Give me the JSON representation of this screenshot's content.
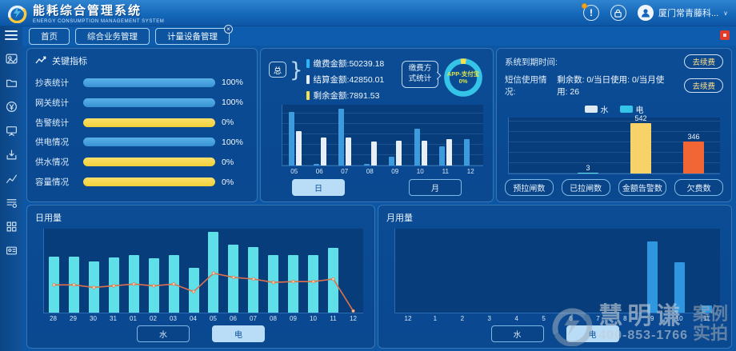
{
  "colors": {
    "indicator_blue": "#47a1de",
    "indicator_yellow": "#f5d94e",
    "bar_blue": "#3d9bdd",
    "bar_white": "#e8eef5",
    "bar_cyan": "#5fdfe8",
    "bar_month_blue": "#2f97e0",
    "bar_warn_yellow": "#f7d268",
    "bar_warn_orange": "#f26535",
    "line_orange": "#e0714a",
    "donut_ring": "#35c3e8",
    "donut_accent": "#f7e04e"
  },
  "header": {
    "title": "能耗综合管理系统",
    "subtitle": "ENERGY CONSUMPTION MANAGEMENT SYSTEM",
    "user": "厦门常青藤科...",
    "alert_glyph": "!"
  },
  "tabs": [
    {
      "label": "首页",
      "closable": false
    },
    {
      "label": "综合业务管理",
      "closable": false
    },
    {
      "label": "计量设备管理",
      "closable": true
    }
  ],
  "sidebar": {
    "items": [
      "monitor-card-icon",
      "folder-icon",
      "currency-icon",
      "presentation-icon",
      "download-tray-icon",
      "line-chart-icon",
      "list-gear-icon",
      "grid-icon",
      "id-card-icon"
    ]
  },
  "panels": {
    "indicators": {
      "title": "关键指标",
      "rows": [
        {
          "label": "抄表统计",
          "value": "100%",
          "color": "blue"
        },
        {
          "label": "网关统计",
          "value": "100%",
          "color": "blue"
        },
        {
          "label": "告警统计",
          "value": "0%",
          "color": "yellow"
        },
        {
          "label": "供电情况",
          "value": "100%",
          "color": "blue"
        },
        {
          "label": "供水情况",
          "value": "0%",
          "color": "yellow"
        },
        {
          "label": "容量情况",
          "value": "0%",
          "color": "yellow"
        }
      ]
    },
    "payment": {
      "badge": "总",
      "stats": [
        {
          "label": "缴费金额:50239.18",
          "color": "#29b6f6"
        },
        {
          "label": "结算金额:42850.01",
          "color": "#e8eef5"
        },
        {
          "label": "剩余金额:7891.53",
          "color": "#f7e04e"
        }
      ],
      "method_label": "缴费方式统计",
      "donut_center_line1": "APP-支付宝",
      "donut_center_line2": "0%",
      "day_btn": "日",
      "month_btn": "月"
    },
    "system": {
      "expire_label": "系统到期时间:",
      "renew_label": "去续费",
      "sms_label": "短信使用情况:",
      "sms_value": "剩余数: 0/当日使用: 0/当月使用: 26",
      "legend": [
        {
          "label": "水",
          "color": "#dfe9f2"
        },
        {
          "label": "电",
          "color": "#35c3e8"
        }
      ],
      "count_buttons": [
        "预拉闸数",
        "已拉闸数",
        "金额告警数",
        "欠费数"
      ]
    },
    "daily": {
      "title": "日用量",
      "water_btn": "水",
      "electric_btn": "电"
    },
    "monthly": {
      "title": "月用量",
      "water_btn": "水",
      "electric_btn": "电"
    }
  },
  "watermark": {
    "name": "慧明谦",
    "tag1": "案例",
    "phone": "400-853-1766",
    "tag2": "实拍"
  },
  "chart_data": [
    {
      "id": "payment_bar",
      "type": "bar",
      "title": "缴费方式统计(日)",
      "categories": [
        "05",
        "06",
        "07",
        "08",
        "09",
        "10",
        "11",
        "12"
      ],
      "series": [
        {
          "name": "缴费",
          "color": "#3d9bdd",
          "values": [
            88,
            3,
            93,
            3,
            15,
            61,
            31,
            44
          ]
        },
        {
          "name": "结算",
          "color": "#e8eef5",
          "values": [
            57,
            46,
            46,
            40,
            41,
            41,
            44,
            0
          ]
        }
      ],
      "ylim": [
        0,
        100
      ],
      "grid": true,
      "note": "values are % of plot height, no y-axis labels shown"
    },
    {
      "id": "payment_donut",
      "type": "pie",
      "slices": [
        {
          "label": "APP-支付宝",
          "value": 0,
          "color": "#f7e04e"
        },
        {
          "label": "其余",
          "value": 100,
          "color": "#35c3e8"
        }
      ],
      "accent_percent": 5,
      "center_text": "APP-支付宝 0%"
    },
    {
      "id": "system_counts",
      "type": "bar",
      "categories": [
        "预拉闸数",
        "已拉闸数",
        "金额告警数",
        "欠费数"
      ],
      "values": [
        0,
        3,
        542,
        346
      ],
      "colors": [
        "#5fdfe8",
        "#5fdfe8",
        "#f7d268",
        "#f26535"
      ],
      "data_labels": [
        "",
        "3",
        "542",
        "346"
      ],
      "ylim": [
        0,
        600
      ],
      "grid": true
    },
    {
      "id": "daily_usage",
      "type": "bar+line",
      "title": "日用量(电)",
      "categories": [
        "28",
        "29",
        "30",
        "31",
        "01",
        "02",
        "03",
        "04",
        "05",
        "06",
        "07",
        "08",
        "09",
        "10",
        "11",
        "12"
      ],
      "bar_values": [
        67,
        67,
        61,
        66,
        69,
        65,
        69,
        53,
        96,
        81,
        78,
        69,
        69,
        69,
        77,
        0
      ],
      "line_values": [
        33,
        33,
        30,
        32,
        34,
        32,
        34,
        25,
        47,
        42,
        40,
        36,
        37,
        37,
        40,
        2
      ],
      "bar_color": "#5fdfe8",
      "line_color": "#e0714a",
      "ylim": [
        0,
        100
      ],
      "grid": false,
      "note": "values are % of plot height, no y-axis labels shown"
    },
    {
      "id": "monthly_usage",
      "type": "bar",
      "title": "月用量(电)",
      "categories": [
        "12",
        "1",
        "2",
        "3",
        "4",
        "5",
        "6",
        "7",
        "8",
        "9",
        "10",
        "11"
      ],
      "values": [
        0,
        0,
        0,
        0,
        0,
        0,
        0,
        0,
        0,
        85,
        60,
        9
      ],
      "bar_color": "#2f97e0",
      "ylim": [
        0,
        100
      ],
      "grid": false,
      "note": "values are % of plot height, no y-axis labels shown"
    }
  ]
}
